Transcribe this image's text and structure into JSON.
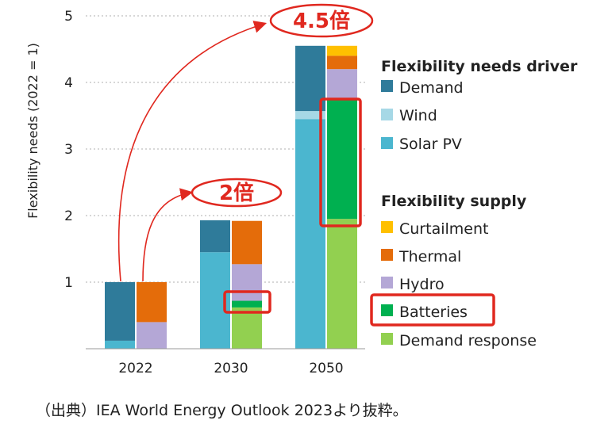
{
  "chart_data": {
    "type": "bar",
    "stacked_grouped": true,
    "title": "",
    "xlabel": "",
    "ylabel": "Flexibility needs (2022 = 1)",
    "ylim": [
      0,
      5
    ],
    "yticks": [
      "1",
      "2",
      "3",
      "4",
      "5"
    ],
    "categories": [
      "2022",
      "2030",
      "2050"
    ],
    "groups": [
      {
        "name": "Flexibility needs driver",
        "series": [
          {
            "name": "Solar PV",
            "color": "#4bb6cf",
            "values": [
              0.12,
              1.45,
              3.45
            ]
          },
          {
            "name": "Wind",
            "color": "#a6d8e6",
            "values": [
              0.0,
              0.0,
              0.12
            ]
          },
          {
            "name": "Demand",
            "color": "#2f7b9a",
            "values": [
              0.88,
              0.48,
              0.98
            ]
          }
        ]
      },
      {
        "name": "Flexibility supply",
        "series": [
          {
            "name": "Demand response",
            "color": "#92d050",
            "values": [
              0.0,
              0.62,
              1.95
            ]
          },
          {
            "name": "Batteries",
            "color": "#00b050",
            "values": [
              0.0,
              0.1,
              1.8
            ]
          },
          {
            "name": "Hydro",
            "color": "#b4a7d6",
            "values": [
              0.4,
              0.55,
              0.45
            ]
          },
          {
            "name": "Thermal",
            "color": "#e46c0a",
            "values": [
              0.6,
              0.65,
              0.2
            ]
          },
          {
            "name": "Curtailment",
            "color": "#ffc000",
            "values": [
              0.0,
              0.0,
              0.15
            ]
          }
        ]
      }
    ],
    "legend": {
      "driver_title": "Flexibility needs driver",
      "driver_items": [
        "Demand",
        "Wind",
        "Solar PV"
      ],
      "supply_title": "Flexibility supply",
      "supply_items": [
        "Curtailment",
        "Thermal",
        "Hydro",
        "Batteries",
        "Demand response"
      ]
    },
    "annotations": [
      "2倍",
      "4.5倍"
    ]
  },
  "caption": "（出典）IEA World Energy Outlook 2023より抜粋。",
  "colors": {
    "highlight": "#e0281f",
    "grid": "#bfbfbf",
    "axis": "#999999"
  }
}
